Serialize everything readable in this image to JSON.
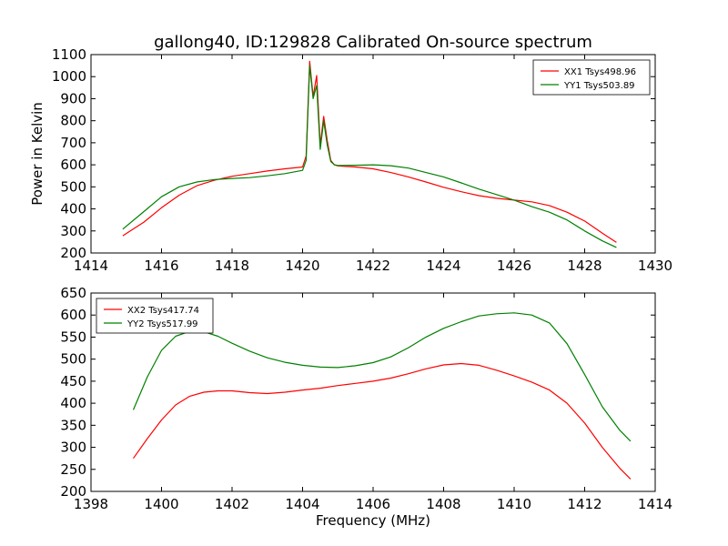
{
  "chart_data": [
    {
      "type": "line",
      "title": "gallong40, ID:129828 Calibrated On-source spectrum",
      "xlabel": "",
      "ylabel": "Power in Kelvin",
      "xlim": [
        1414,
        1430
      ],
      "ylim": [
        200,
        1100
      ],
      "xticks": [
        "1414",
        "1416",
        "1418",
        "1420",
        "1422",
        "1424",
        "1426",
        "1428",
        "1430"
      ],
      "yticks": [
        "200",
        "300",
        "400",
        "500",
        "600",
        "700",
        "800",
        "900",
        "1000",
        "1100"
      ],
      "grid": false,
      "legend": "top-right",
      "series": [
        {
          "name": "XX1 Tsys498.96",
          "color": "#ff0000",
          "x": [
            1414.9,
            1415.5,
            1416.0,
            1416.5,
            1417.0,
            1417.5,
            1418.0,
            1418.5,
            1419.0,
            1419.5,
            1420.0,
            1420.1,
            1420.2,
            1420.3,
            1420.4,
            1420.5,
            1420.6,
            1420.7,
            1420.8,
            1420.9,
            1421.0,
            1421.5,
            1422.0,
            1422.5,
            1423.0,
            1423.5,
            1424.0,
            1424.5,
            1425.0,
            1425.5,
            1426.0,
            1426.5,
            1427.0,
            1427.5,
            1428.0,
            1428.5,
            1428.9
          ],
          "y": [
            278,
            340,
            405,
            462,
            505,
            530,
            548,
            560,
            572,
            582,
            590,
            640,
            1070,
            910,
            1005,
            690,
            820,
            710,
            620,
            600,
            595,
            590,
            582,
            565,
            545,
            522,
            498,
            478,
            460,
            448,
            440,
            432,
            415,
            385,
            345,
            290,
            248
          ]
        },
        {
          "name": "YY1 Tsys503.89",
          "color": "#008000",
          "x": [
            1414.9,
            1415.5,
            1416.0,
            1416.5,
            1417.0,
            1417.5,
            1418.0,
            1418.5,
            1419.0,
            1419.5,
            1420.0,
            1420.1,
            1420.2,
            1420.3,
            1420.4,
            1420.5,
            1420.6,
            1420.7,
            1420.8,
            1420.9,
            1421.0,
            1421.5,
            1422.0,
            1422.5,
            1423.0,
            1423.5,
            1424.0,
            1424.5,
            1425.0,
            1425.5,
            1426.0,
            1426.5,
            1427.0,
            1427.5,
            1428.0,
            1428.5,
            1428.9
          ],
          "y": [
            308,
            388,
            455,
            500,
            522,
            533,
            538,
            542,
            550,
            560,
            575,
            620,
            1050,
            900,
            960,
            670,
            800,
            690,
            615,
            600,
            597,
            598,
            600,
            596,
            585,
            565,
            545,
            518,
            490,
            465,
            440,
            410,
            385,
            350,
            300,
            255,
            225
          ]
        }
      ]
    },
    {
      "type": "line",
      "title": "",
      "xlabel": "Frequency (MHz)",
      "ylabel": "",
      "xlim": [
        1398,
        1414
      ],
      "ylim": [
        200,
        650
      ],
      "xticks": [
        "1398",
        "1400",
        "1402",
        "1404",
        "1406",
        "1408",
        "1410",
        "1412",
        "1414"
      ],
      "yticks": [
        "200",
        "250",
        "300",
        "350",
        "400",
        "450",
        "500",
        "550",
        "600",
        "650"
      ],
      "grid": false,
      "legend": "top-left",
      "series": [
        {
          "name": "XX2 Tsys417.74",
          "color": "#ff0000",
          "x": [
            1399.2,
            1399.6,
            1400.0,
            1400.4,
            1400.8,
            1401.2,
            1401.6,
            1402.0,
            1402.5,
            1403.0,
            1403.5,
            1404.0,
            1404.5,
            1405.0,
            1405.5,
            1406.0,
            1406.5,
            1407.0,
            1407.5,
            1408.0,
            1408.5,
            1409.0,
            1409.5,
            1410.0,
            1410.5,
            1411.0,
            1411.5,
            1412.0,
            1412.5,
            1413.0,
            1413.3
          ],
          "y": [
            275,
            320,
            362,
            396,
            416,
            425,
            428,
            428,
            424,
            422,
            425,
            430,
            434,
            440,
            445,
            450,
            457,
            467,
            478,
            487,
            490,
            486,
            475,
            462,
            448,
            430,
            400,
            355,
            300,
            252,
            228
          ]
        },
        {
          "name": "YY2 Tsys517.99",
          "color": "#008000",
          "x": [
            1399.2,
            1399.6,
            1400.0,
            1400.4,
            1400.8,
            1401.2,
            1401.6,
            1402.0,
            1402.5,
            1403.0,
            1403.5,
            1404.0,
            1404.5,
            1405.0,
            1405.5,
            1406.0,
            1406.5,
            1407.0,
            1407.5,
            1408.0,
            1408.5,
            1409.0,
            1409.5,
            1410.0,
            1410.5,
            1411.0,
            1411.5,
            1412.0,
            1412.5,
            1413.0,
            1413.3
          ],
          "y": [
            385,
            460,
            520,
            552,
            563,
            562,
            552,
            536,
            518,
            503,
            493,
            486,
            482,
            481,
            485,
            492,
            505,
            526,
            550,
            570,
            585,
            598,
            603,
            605,
            600,
            582,
            535,
            465,
            392,
            338,
            314
          ]
        }
      ]
    }
  ]
}
